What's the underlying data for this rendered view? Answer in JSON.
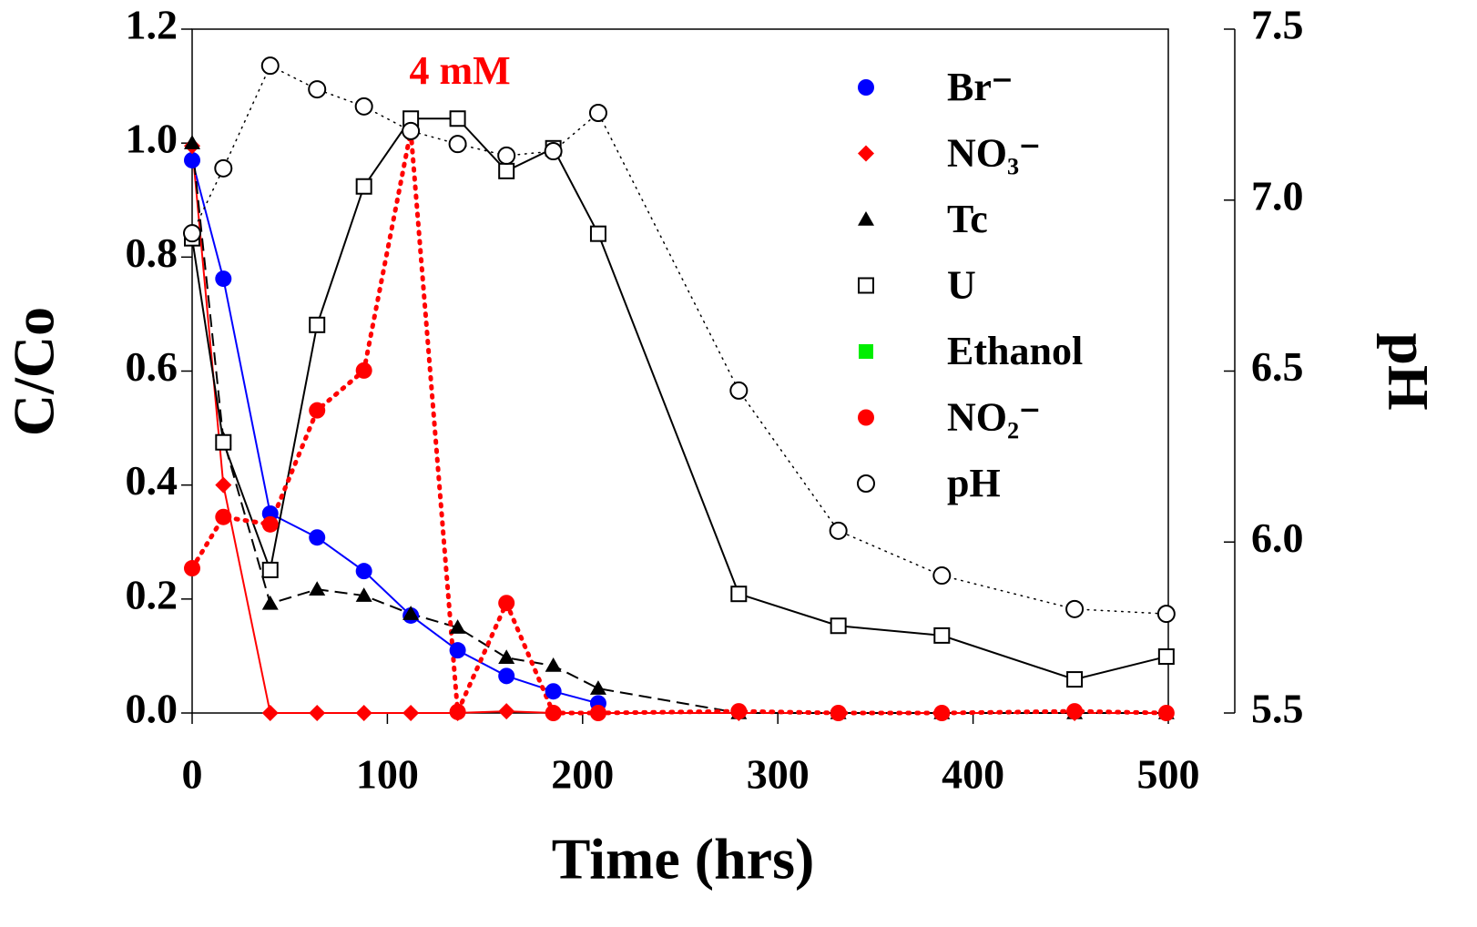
{
  "chart_data": {
    "type": "line",
    "xlabel": "Time (hrs)",
    "ylabel": "C/Co",
    "y2label": "pH",
    "xlim": [
      0,
      500
    ],
    "xticks": [
      0,
      100,
      200,
      300,
      400,
      500
    ],
    "ylim": [
      0,
      1.2
    ],
    "yticks": [
      {
        "value": 0,
        "label": "0.0"
      },
      0.2,
      0.4,
      0.6,
      0.8,
      {
        "value": 1,
        "label": "1.0"
      },
      1.2
    ],
    "y2lim": [
      5.5,
      7.5
    ],
    "y2ticks": [
      5.5,
      {
        "value": 6,
        "label": "6.0"
      },
      6.5,
      {
        "value": 7,
        "label": "7.0"
      },
      7.5
    ],
    "legend": "upper right",
    "annotations": [
      {
        "text": "4 mM",
        "x": 112,
        "y": 1.12,
        "color": "#ff0000"
      }
    ],
    "series": [
      {
        "name": "Br⁻",
        "color": "#0000ff",
        "marker": "circle",
        "line": "solid",
        "x": [
          0,
          16,
          40,
          64,
          88,
          112,
          136,
          161,
          185,
          208
        ],
        "values": [
          0.97,
          0.762,
          0.35,
          0.308,
          0.249,
          0.171,
          0.11,
          0.065,
          0.038,
          0.017
        ]
      },
      {
        "name": "NO₃⁻",
        "color": "#ff0000",
        "marker": "diamond",
        "line": "solid",
        "x": [
          0,
          16,
          40,
          64,
          88,
          112,
          136,
          161,
          185,
          208,
          280,
          331,
          384,
          452,
          499
        ],
        "values": [
          0.995,
          0.4,
          0,
          0,
          0,
          0,
          0,
          0.003,
          0,
          0,
          0,
          0,
          0,
          0,
          0
        ]
      },
      {
        "name": "Tc",
        "color": "#000000",
        "marker": "triangle",
        "line": "dashed",
        "x": [
          0,
          16,
          40,
          64,
          88,
          112,
          136,
          161,
          185,
          208,
          280,
          331,
          384,
          452,
          499
        ],
        "values": [
          1.0,
          0.48,
          0.192,
          0.217,
          0.206,
          0.174,
          0.15,
          0.097,
          0.083,
          0.043,
          0,
          0,
          0,
          0,
          0
        ]
      },
      {
        "name": "U",
        "color": "#000000",
        "marker": "open-square",
        "line": "solid",
        "x": [
          0,
          16,
          40,
          64,
          88,
          112,
          136,
          161,
          185,
          208,
          280,
          331,
          384,
          452,
          499
        ],
        "values": [
          0.833,
          0.475,
          0.251,
          0.681,
          0.924,
          1.043,
          1.043,
          0.951,
          0.991,
          0.841,
          0.209,
          0.153,
          0.136,
          0.059,
          0.099
        ]
      },
      {
        "name": "Ethanol",
        "color": "#00ee00",
        "marker": "square",
        "line": "none",
        "x": [],
        "values": []
      },
      {
        "name": "NO₂⁻",
        "color": "#ff0000",
        "marker": "circle",
        "line": "dotted",
        "x": [
          0,
          16,
          40,
          64,
          88,
          112,
          136,
          161,
          185,
          208,
          280,
          331,
          384,
          452,
          499
        ],
        "values": [
          0.254,
          0.344,
          0.331,
          0.531,
          0.601,
          1.021,
          0.002,
          0.193,
          0,
          0,
          0.003,
          0,
          0,
          0.003,
          0
        ]
      },
      {
        "name": "pH",
        "color": "#000000",
        "marker": "open-circle",
        "line": "fine-dotted",
        "axis": "y2",
        "x": [
          0,
          16,
          40,
          64,
          88,
          112,
          136,
          161,
          185,
          208,
          280,
          331,
          384,
          452,
          499
        ],
        "values": [
          6.903,
          7.093,
          7.393,
          7.324,
          7.274,
          7.202,
          7.164,
          7.13,
          7.143,
          7.255,
          6.443,
          6.033,
          5.902,
          5.804,
          5.79
        ]
      }
    ]
  }
}
